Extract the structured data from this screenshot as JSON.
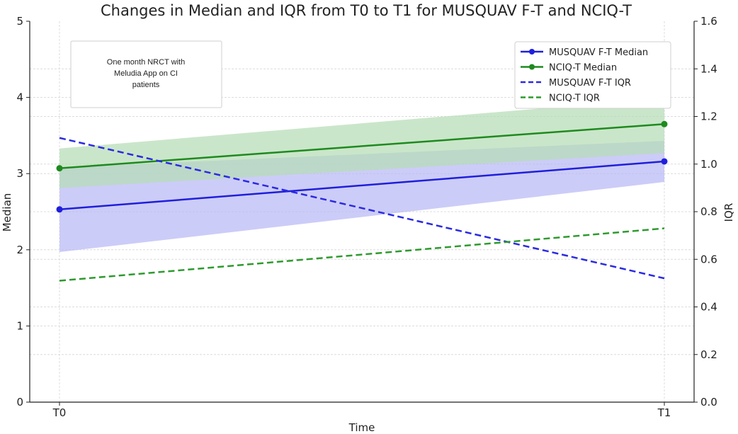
{
  "chart_data": {
    "type": "line",
    "title": "Changes in Median and IQR from T0 to T1 for MUSQUAV F-T and NCIQ-T",
    "xlabel": "Time",
    "ylabel_left": "Median",
    "ylabel_right": "IQR",
    "categories": [
      "T0",
      "T1"
    ],
    "ylim_left": [
      0,
      5
    ],
    "ylim_right": [
      0,
      1.6
    ],
    "yticks_left": [
      "0",
      "1",
      "2",
      "3",
      "4",
      "5"
    ],
    "yticks_right": [
      "0.0",
      "0.2",
      "0.4",
      "0.6",
      "0.8",
      "1.0",
      "1.2",
      "1.4",
      "1.6"
    ],
    "grid": true,
    "legend_position": "top-right",
    "annotation": [
      "One month NRCT with",
      "Meludia App on CI",
      "patients"
    ],
    "series": [
      {
        "name": "MUSQUAV F-T Median",
        "axis": "left",
        "style": "solid-marker",
        "color": "#1f1fdc",
        "values": [
          2.53,
          3.16
        ],
        "band_low": [
          1.97,
          2.89
        ],
        "band_high": [
          3.08,
          3.43
        ],
        "band_color": "#b8b8f5"
      },
      {
        "name": "NCIQ-T Median",
        "axis": "left",
        "style": "solid-marker",
        "color": "#1e8a1e",
        "values": [
          3.07,
          3.65
        ],
        "band_low": [
          2.81,
          3.27
        ],
        "band_high": [
          3.33,
          3.99
        ],
        "band_color": "#b5dcb5"
      },
      {
        "name": "MUSQUAV F-T IQR",
        "axis": "right",
        "style": "dashed",
        "color": "#2b2be0",
        "values": [
          1.11,
          0.52
        ]
      },
      {
        "name": "NCIQ-T IQR",
        "axis": "right",
        "style": "dashed",
        "color": "#2e9a2e",
        "values": [
          0.51,
          0.73
        ]
      }
    ]
  }
}
